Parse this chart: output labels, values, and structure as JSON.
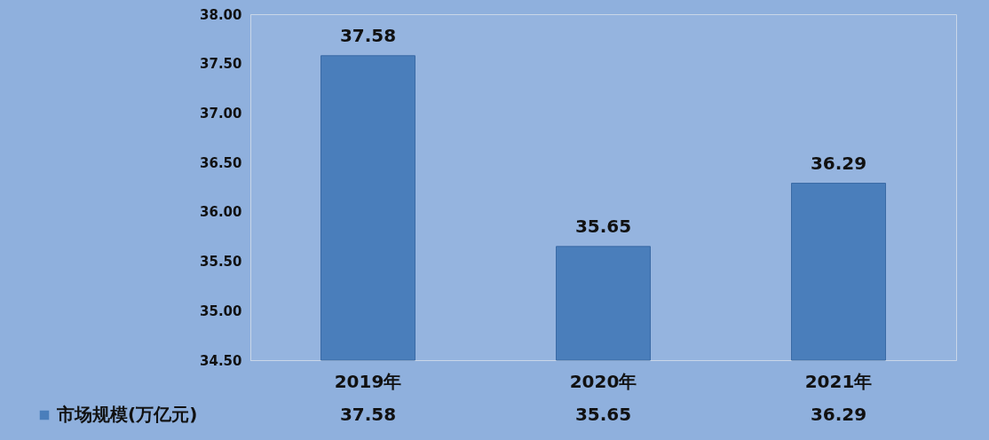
{
  "chart_data": {
    "type": "bar",
    "categories": [
      "2019年",
      "2020年",
      "2021年"
    ],
    "series": [
      {
        "name": "市场规模(万亿元)",
        "color": "#4a7ebb",
        "values": [
          37.58,
          35.65,
          36.29
        ],
        "value_labels": [
          "37.58",
          "35.65",
          "36.29"
        ]
      }
    ],
    "ylim": [
      34.5,
      38
    ],
    "yticks": [
      {
        "value": 34.5,
        "label": "34.50"
      },
      {
        "value": 35,
        "label": "35.00"
      },
      {
        "value": 35.5,
        "label": "35.50"
      },
      {
        "value": 36,
        "label": "36.00"
      },
      {
        "value": 36.5,
        "label": "36.50"
      },
      {
        "value": 37,
        "label": "37.00"
      },
      {
        "value": 37.5,
        "label": "37.50"
      },
      {
        "value": 38,
        "label": "38.00"
      }
    ],
    "annotations": [
      "37.58",
      "35.65",
      "36.29"
    ],
    "legend": "bottom left"
  }
}
